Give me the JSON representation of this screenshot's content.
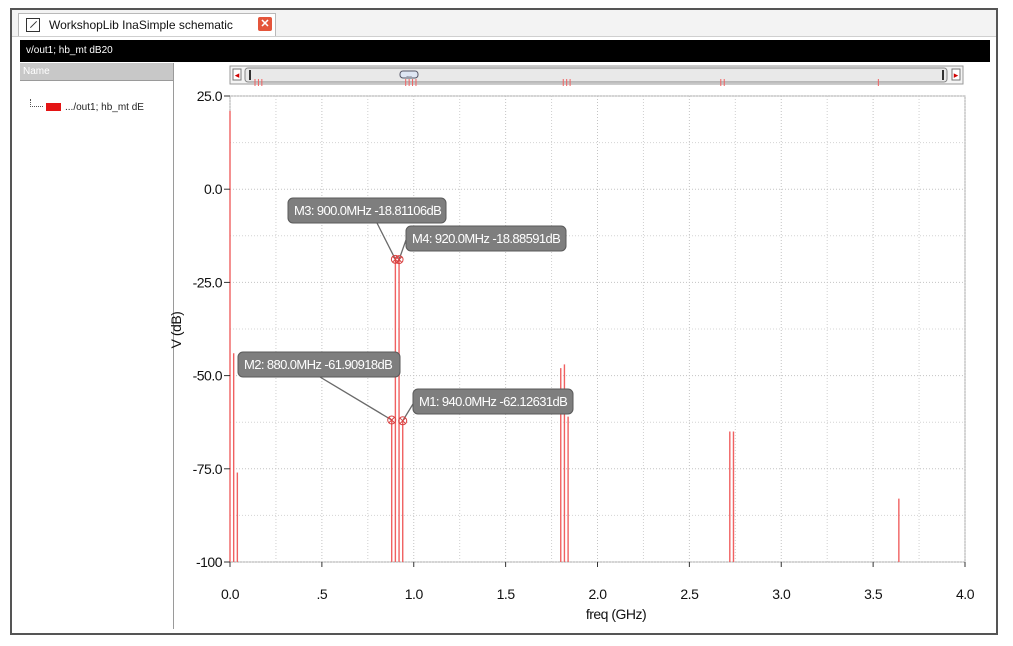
{
  "window": {
    "tab_title": "WorkshopLib InaSimple schematic",
    "plot_title": "v/out1; hb_mt dB20"
  },
  "legend_panel": {
    "header": "Name",
    "trace_label": ".../out1; hb_mt dE",
    "trace_color": "#e41414"
  },
  "scrollbar": {
    "thumb_label": "...",
    "left_arrow": "◂",
    "right_arrow": "▸"
  },
  "chart_data": {
    "type": "bar",
    "xlabel": "freq (GHz)",
    "ylabel": "V (dB)",
    "xlim": [
      0.0,
      4.0
    ],
    "ylim": [
      -100,
      25
    ],
    "grid": true,
    "x_ticks": [
      "0.0",
      ".5",
      "1.0",
      "1.5",
      "2.0",
      "2.5",
      "3.0",
      "3.5",
      "4.0"
    ],
    "y_ticks": [
      "25.0",
      "0.0",
      "-25.0",
      "-50.0",
      "-75.0",
      "-100"
    ],
    "series": [
      {
        "color": "#f06060",
        "points": [
          {
            "x": 0.0,
            "y": 21
          },
          {
            "x": 0.02,
            "y": -44
          },
          {
            "x": 0.04,
            "y": -76
          },
          {
            "x": 0.88,
            "y": -61.90918
          },
          {
            "x": 0.9,
            "y": -18.81106
          },
          {
            "x": 0.92,
            "y": -18.88591
          },
          {
            "x": 0.94,
            "y": -62.12631
          },
          {
            "x": 1.8,
            "y": -48
          },
          {
            "x": 1.82,
            "y": -47
          },
          {
            "x": 1.84,
            "y": -61
          },
          {
            "x": 2.72,
            "y": -65
          },
          {
            "x": 2.74,
            "y": -65
          },
          {
            "x": 3.64,
            "y": -83
          }
        ]
      }
    ],
    "markers": [
      {
        "id": "M3",
        "label": "M3: 900.0MHz -18.81106dB",
        "x": 0.9,
        "y": -18.81106
      },
      {
        "id": "M4",
        "label": "M4: 920.0MHz -18.88591dB",
        "x": 0.92,
        "y": -18.88591
      },
      {
        "id": "M2",
        "label": "M2: 880.0MHz -61.90918dB",
        "x": 0.88,
        "y": -61.90918
      },
      {
        "id": "M1",
        "label": "M1: 940.0MHz -62.12631dB",
        "x": 0.94,
        "y": -62.12631
      }
    ]
  }
}
